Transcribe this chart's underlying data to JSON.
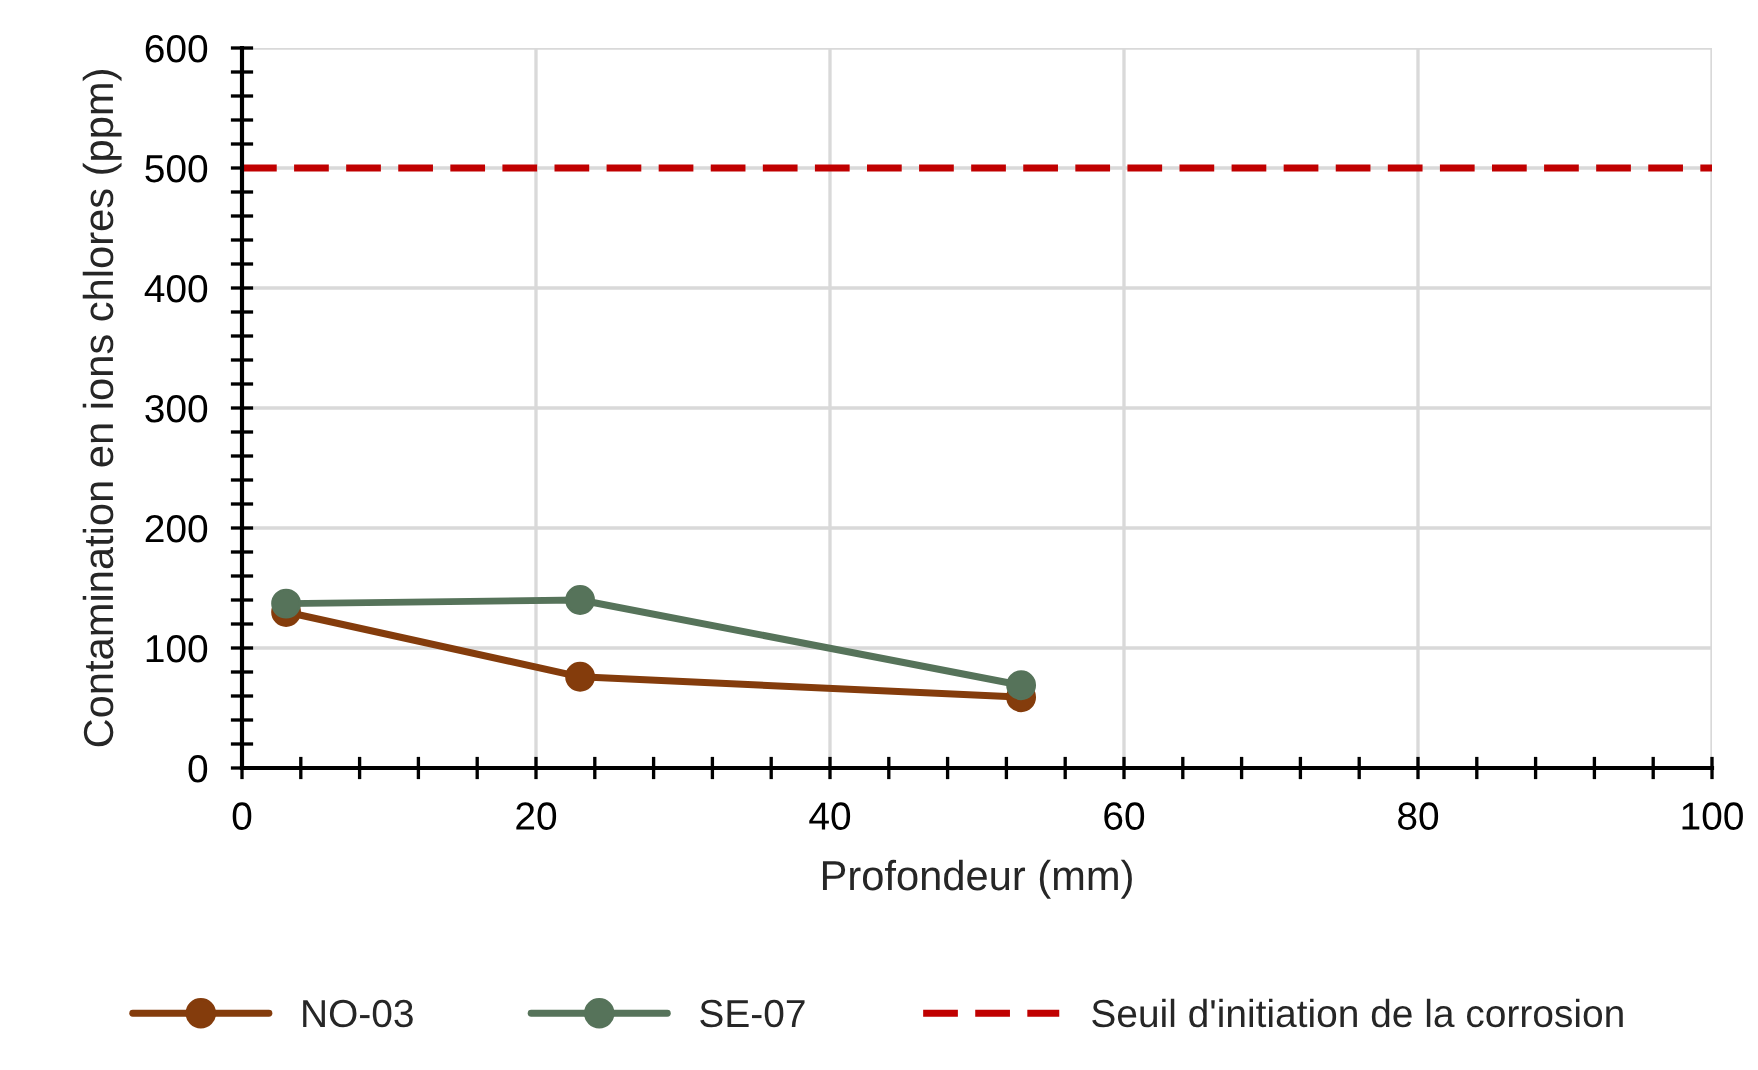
{
  "chart_data": {
    "type": "line",
    "xlabel": "Profondeur (mm)",
    "ylabel": "Contamination en ions chlores (ppm)",
    "series": [
      {
        "name": "NO-03",
        "color": "#843c0c",
        "x": [
          3,
          23,
          53
        ],
        "values": [
          130,
          76,
          59
        ]
      },
      {
        "name": "SE-07",
        "color": "#56735a",
        "x": [
          3,
          23,
          53
        ],
        "values": [
          137,
          140,
          69
        ]
      }
    ],
    "ref_lines": [
      {
        "axis": "y",
        "value": 500,
        "label": "Seuil d'initiation de la corrosion",
        "color": "#c00000",
        "line_style": "dashed"
      }
    ],
    "xlim": [
      0,
      100
    ],
    "ylim": [
      0,
      600
    ],
    "xticks": [
      0,
      {
        "value": 4,
        "label": null
      },
      {
        "value": 8,
        "label": null
      },
      {
        "value": 12,
        "label": null
      },
      {
        "value": 16,
        "label": null
      },
      20,
      {
        "value": 24,
        "label": null
      },
      {
        "value": 28,
        "label": null
      },
      {
        "value": 32,
        "label": null
      },
      {
        "value": 36,
        "label": null
      },
      40,
      {
        "value": 44,
        "label": null
      },
      {
        "value": 48,
        "label": null
      },
      {
        "value": 52,
        "label": null
      },
      {
        "value": 56,
        "label": null
      },
      60,
      {
        "value": 64,
        "label": null
      },
      {
        "value": 68,
        "label": null
      },
      {
        "value": 72,
        "label": null
      },
      {
        "value": 76,
        "label": null
      },
      80,
      {
        "value": 84,
        "label": null
      },
      {
        "value": 88,
        "label": null
      },
      {
        "value": 92,
        "label": null
      },
      {
        "value": 96,
        "label": null
      },
      100
    ],
    "yticks": [
      0,
      {
        "value": 20,
        "label": null
      },
      {
        "value": 40,
        "label": null
      },
      {
        "value": 60,
        "label": null
      },
      {
        "value": 80,
        "label": null
      },
      100,
      {
        "value": 120,
        "label": null
      },
      {
        "value": 140,
        "label": null
      },
      {
        "value": 160,
        "label": null
      },
      {
        "value": 180,
        "label": null
      },
      200,
      {
        "value": 220,
        "label": null
      },
      {
        "value": 240,
        "label": null
      },
      {
        "value": 260,
        "label": null
      },
      {
        "value": 280,
        "label": null
      },
      300,
      {
        "value": 320,
        "label": null
      },
      {
        "value": 340,
        "label": null
      },
      {
        "value": 360,
        "label": null
      },
      {
        "value": 380,
        "label": null
      },
      400,
      {
        "value": 420,
        "label": null
      },
      {
        "value": 440,
        "label": null
      },
      {
        "value": 460,
        "label": null
      },
      {
        "value": 480,
        "label": null
      },
      500,
      {
        "value": 520,
        "label": null
      },
      {
        "value": 540,
        "label": null
      },
      {
        "value": 560,
        "label": null
      },
      {
        "value": 580,
        "label": null
      },
      600
    ],
    "grid": true,
    "legend": "bottom",
    "marker": "circle",
    "line_style": "solid"
  }
}
